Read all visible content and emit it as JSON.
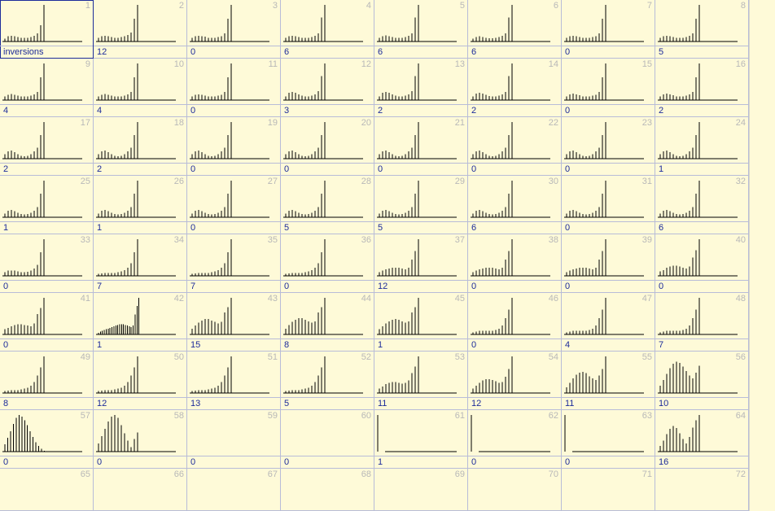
{
  "first_cell_label": "inversions",
  "cells": [
    {
      "n": "1",
      "value": "",
      "bars": [
        0.08,
        0.14,
        0.16,
        0.14,
        0.12,
        0.1,
        0.1,
        0.1,
        0.12,
        0.16,
        0.22,
        0.45,
        1.0
      ]
    },
    {
      "n": "2",
      "value": "12",
      "bars": [
        0.1,
        0.14,
        0.16,
        0.14,
        0.12,
        0.1,
        0.1,
        0.12,
        0.14,
        0.18,
        0.24,
        0.62,
        1.0
      ]
    },
    {
      "n": "3",
      "value": "0",
      "bars": [
        0.1,
        0.14,
        0.16,
        0.15,
        0.13,
        0.1,
        0.1,
        0.1,
        0.12,
        0.15,
        0.22,
        0.62,
        1.0
      ]
    },
    {
      "n": "4",
      "value": "6",
      "bars": [
        0.1,
        0.15,
        0.16,
        0.14,
        0.12,
        0.1,
        0.1,
        0.1,
        0.12,
        0.16,
        0.22,
        0.66,
        1.0
      ]
    },
    {
      "n": "5",
      "value": "6",
      "bars": [
        0.1,
        0.15,
        0.17,
        0.15,
        0.12,
        0.1,
        0.1,
        0.1,
        0.12,
        0.16,
        0.22,
        0.66,
        1.0
      ]
    },
    {
      "n": "6",
      "value": "6",
      "bars": [
        0.08,
        0.12,
        0.14,
        0.12,
        0.1,
        0.09,
        0.09,
        0.1,
        0.12,
        0.16,
        0.22,
        0.66,
        1.0
      ]
    },
    {
      "n": "7",
      "value": "0",
      "bars": [
        0.1,
        0.14,
        0.16,
        0.14,
        0.12,
        0.1,
        0.1,
        0.1,
        0.12,
        0.15,
        0.22,
        0.62,
        1.0
      ]
    },
    {
      "n": "8",
      "value": "5",
      "bars": [
        0.1,
        0.15,
        0.16,
        0.14,
        0.12,
        0.1,
        0.1,
        0.1,
        0.12,
        0.16,
        0.22,
        0.62,
        1.0
      ]
    },
    {
      "n": "9",
      "value": "4",
      "bars": [
        0.1,
        0.15,
        0.17,
        0.14,
        0.12,
        0.1,
        0.1,
        0.1,
        0.12,
        0.16,
        0.22,
        0.62,
        1.0
      ]
    },
    {
      "n": "10",
      "value": "4",
      "bars": [
        0.1,
        0.15,
        0.17,
        0.14,
        0.12,
        0.1,
        0.1,
        0.1,
        0.12,
        0.16,
        0.22,
        0.62,
        1.0
      ]
    },
    {
      "n": "11",
      "value": "0",
      "bars": [
        0.1,
        0.14,
        0.16,
        0.14,
        0.12,
        0.1,
        0.1,
        0.1,
        0.12,
        0.15,
        0.22,
        0.62,
        1.0
      ]
    },
    {
      "n": "12",
      "value": "3",
      "bars": [
        0.1,
        0.2,
        0.22,
        0.2,
        0.16,
        0.12,
        0.1,
        0.1,
        0.12,
        0.16,
        0.24,
        0.66,
        1.0
      ]
    },
    {
      "n": "13",
      "value": "2",
      "bars": [
        0.1,
        0.2,
        0.22,
        0.2,
        0.16,
        0.12,
        0.1,
        0.1,
        0.12,
        0.16,
        0.24,
        0.66,
        1.0
      ]
    },
    {
      "n": "14",
      "value": "2",
      "bars": [
        0.1,
        0.18,
        0.2,
        0.18,
        0.14,
        0.11,
        0.1,
        0.1,
        0.12,
        0.16,
        0.22,
        0.66,
        1.0
      ]
    },
    {
      "n": "15",
      "value": "0",
      "bars": [
        0.1,
        0.16,
        0.18,
        0.16,
        0.13,
        0.1,
        0.1,
        0.1,
        0.12,
        0.15,
        0.22,
        0.62,
        1.0
      ]
    },
    {
      "n": "16",
      "value": "2",
      "bars": [
        0.1,
        0.16,
        0.18,
        0.16,
        0.13,
        0.1,
        0.1,
        0.1,
        0.12,
        0.16,
        0.22,
        0.62,
        1.0
      ]
    },
    {
      "n": "17",
      "value": "2",
      "bars": [
        0.12,
        0.2,
        0.22,
        0.18,
        0.12,
        0.08,
        0.07,
        0.08,
        0.12,
        0.2,
        0.3,
        0.64,
        1.0
      ]
    },
    {
      "n": "18",
      "value": "2",
      "bars": [
        0.12,
        0.2,
        0.22,
        0.18,
        0.12,
        0.08,
        0.07,
        0.08,
        0.12,
        0.2,
        0.3,
        0.64,
        1.0
      ]
    },
    {
      "n": "19",
      "value": "0",
      "bars": [
        0.12,
        0.2,
        0.22,
        0.18,
        0.12,
        0.08,
        0.07,
        0.08,
        0.12,
        0.2,
        0.3,
        0.64,
        1.0
      ]
    },
    {
      "n": "20",
      "value": "0",
      "bars": [
        0.12,
        0.2,
        0.22,
        0.18,
        0.12,
        0.08,
        0.07,
        0.08,
        0.12,
        0.2,
        0.3,
        0.64,
        1.0
      ]
    },
    {
      "n": "21",
      "value": "0",
      "bars": [
        0.12,
        0.2,
        0.22,
        0.18,
        0.12,
        0.08,
        0.07,
        0.08,
        0.12,
        0.2,
        0.3,
        0.64,
        1.0
      ]
    },
    {
      "n": "22",
      "value": "0",
      "bars": [
        0.12,
        0.2,
        0.22,
        0.18,
        0.12,
        0.08,
        0.07,
        0.08,
        0.12,
        0.2,
        0.3,
        0.64,
        1.0
      ]
    },
    {
      "n": "23",
      "value": "0",
      "bars": [
        0.12,
        0.2,
        0.22,
        0.18,
        0.12,
        0.08,
        0.07,
        0.08,
        0.12,
        0.2,
        0.3,
        0.64,
        1.0
      ]
    },
    {
      "n": "24",
      "value": "1",
      "bars": [
        0.12,
        0.2,
        0.22,
        0.18,
        0.12,
        0.08,
        0.07,
        0.08,
        0.12,
        0.2,
        0.3,
        0.64,
        1.0
      ]
    },
    {
      "n": "25",
      "value": "1",
      "bars": [
        0.1,
        0.18,
        0.2,
        0.17,
        0.12,
        0.09,
        0.08,
        0.09,
        0.12,
        0.18,
        0.28,
        0.64,
        1.0
      ]
    },
    {
      "n": "26",
      "value": "1",
      "bars": [
        0.1,
        0.18,
        0.2,
        0.17,
        0.12,
        0.09,
        0.08,
        0.09,
        0.12,
        0.18,
        0.28,
        0.64,
        1.0
      ]
    },
    {
      "n": "27",
      "value": "0",
      "bars": [
        0.1,
        0.18,
        0.2,
        0.17,
        0.12,
        0.09,
        0.08,
        0.09,
        0.12,
        0.18,
        0.28,
        0.64,
        1.0
      ]
    },
    {
      "n": "28",
      "value": "5",
      "bars": [
        0.1,
        0.18,
        0.2,
        0.17,
        0.12,
        0.09,
        0.08,
        0.09,
        0.12,
        0.18,
        0.28,
        0.64,
        1.0
      ]
    },
    {
      "n": "29",
      "value": "5",
      "bars": [
        0.1,
        0.18,
        0.2,
        0.17,
        0.12,
        0.09,
        0.08,
        0.09,
        0.12,
        0.18,
        0.28,
        0.64,
        1.0
      ]
    },
    {
      "n": "30",
      "value": "6",
      "bars": [
        0.1,
        0.18,
        0.2,
        0.17,
        0.12,
        0.09,
        0.08,
        0.09,
        0.12,
        0.18,
        0.28,
        0.64,
        1.0
      ]
    },
    {
      "n": "31",
      "value": "0",
      "bars": [
        0.1,
        0.18,
        0.2,
        0.17,
        0.12,
        0.09,
        0.08,
        0.09,
        0.12,
        0.18,
        0.28,
        0.64,
        1.0
      ]
    },
    {
      "n": "32",
      "value": "6",
      "bars": [
        0.1,
        0.18,
        0.2,
        0.17,
        0.12,
        0.09,
        0.08,
        0.09,
        0.12,
        0.18,
        0.28,
        0.64,
        1.0
      ]
    },
    {
      "n": "33",
      "value": "0",
      "bars": [
        0.1,
        0.14,
        0.15,
        0.14,
        0.12,
        0.1,
        0.1,
        0.11,
        0.14,
        0.2,
        0.3,
        0.64,
        1.0
      ]
    },
    {
      "n": "34",
      "value": "7",
      "bars": [
        0.06,
        0.07,
        0.08,
        0.08,
        0.08,
        0.08,
        0.1,
        0.12,
        0.16,
        0.22,
        0.34,
        0.64,
        1.0
      ]
    },
    {
      "n": "35",
      "value": "7",
      "bars": [
        0.06,
        0.07,
        0.08,
        0.08,
        0.08,
        0.08,
        0.1,
        0.12,
        0.16,
        0.22,
        0.34,
        0.64,
        1.0
      ]
    },
    {
      "n": "36",
      "value": "0",
      "bars": [
        0.06,
        0.07,
        0.08,
        0.08,
        0.08,
        0.08,
        0.1,
        0.12,
        0.16,
        0.22,
        0.34,
        0.64,
        1.0
      ]
    },
    {
      "n": "37",
      "value": "12",
      "bars": [
        0.1,
        0.14,
        0.18,
        0.2,
        0.22,
        0.22,
        0.22,
        0.2,
        0.18,
        0.22,
        0.44,
        0.68,
        1.0
      ]
    },
    {
      "n": "38",
      "value": "0",
      "bars": [
        0.1,
        0.14,
        0.18,
        0.2,
        0.22,
        0.22,
        0.22,
        0.2,
        0.18,
        0.22,
        0.44,
        0.68,
        1.0
      ]
    },
    {
      "n": "39",
      "value": "0",
      "bars": [
        0.1,
        0.14,
        0.18,
        0.2,
        0.22,
        0.22,
        0.22,
        0.2,
        0.18,
        0.22,
        0.44,
        0.68,
        1.0
      ]
    },
    {
      "n": "40",
      "value": "0",
      "bars": [
        0.12,
        0.16,
        0.22,
        0.26,
        0.28,
        0.28,
        0.26,
        0.22,
        0.2,
        0.26,
        0.5,
        0.7,
        1.0
      ]
    },
    {
      "n": "41",
      "value": "0",
      "bars": [
        0.14,
        0.18,
        0.22,
        0.26,
        0.28,
        0.28,
        0.26,
        0.24,
        0.22,
        0.3,
        0.56,
        0.72,
        1.0
      ]
    },
    {
      "n": "42",
      "value": "1",
      "bars": [
        0.04,
        0.08,
        0.1,
        0.12,
        0.14,
        0.16,
        0.18,
        0.2,
        0.22,
        0.24,
        0.26,
        0.28,
        0.28,
        0.28,
        0.26,
        0.24,
        0.22,
        0.2,
        0.24,
        0.54,
        0.78,
        1.0
      ]
    },
    {
      "n": "43",
      "value": "15",
      "bars": [
        0.16,
        0.24,
        0.32,
        0.38,
        0.42,
        0.42,
        0.38,
        0.34,
        0.3,
        0.34,
        0.6,
        0.74,
        1.0
      ]
    },
    {
      "n": "44",
      "value": "8",
      "bars": [
        0.16,
        0.26,
        0.34,
        0.4,
        0.44,
        0.44,
        0.4,
        0.36,
        0.32,
        0.36,
        0.6,
        0.74,
        1.0
      ]
    },
    {
      "n": "45",
      "value": "1",
      "bars": [
        0.14,
        0.22,
        0.3,
        0.36,
        0.4,
        0.42,
        0.4,
        0.36,
        0.32,
        0.36,
        0.6,
        0.74,
        1.0
      ]
    },
    {
      "n": "46",
      "value": "0",
      "bars": [
        0.06,
        0.08,
        0.1,
        0.1,
        0.1,
        0.1,
        0.1,
        0.12,
        0.16,
        0.24,
        0.44,
        0.68,
        1.0
      ]
    },
    {
      "n": "47",
      "value": "4",
      "bars": [
        0.06,
        0.08,
        0.1,
        0.1,
        0.1,
        0.1,
        0.1,
        0.12,
        0.16,
        0.24,
        0.44,
        0.68,
        1.0
      ]
    },
    {
      "n": "48",
      "value": "7",
      "bars": [
        0.06,
        0.08,
        0.1,
        0.1,
        0.1,
        0.1,
        0.1,
        0.12,
        0.16,
        0.24,
        0.44,
        0.68,
        1.0
      ]
    },
    {
      "n": "49",
      "value": "8",
      "bars": [
        0.06,
        0.07,
        0.08,
        0.08,
        0.08,
        0.1,
        0.12,
        0.14,
        0.2,
        0.3,
        0.48,
        0.7,
        1.0
      ]
    },
    {
      "n": "50",
      "value": "12",
      "bars": [
        0.06,
        0.07,
        0.08,
        0.08,
        0.08,
        0.1,
        0.12,
        0.14,
        0.2,
        0.3,
        0.48,
        0.7,
        1.0
      ]
    },
    {
      "n": "51",
      "value": "13",
      "bars": [
        0.06,
        0.07,
        0.08,
        0.08,
        0.08,
        0.1,
        0.12,
        0.14,
        0.2,
        0.3,
        0.48,
        0.7,
        1.0
      ]
    },
    {
      "n": "52",
      "value": "5",
      "bars": [
        0.06,
        0.07,
        0.08,
        0.08,
        0.08,
        0.1,
        0.12,
        0.14,
        0.2,
        0.3,
        0.48,
        0.7,
        1.0
      ]
    },
    {
      "n": "53",
      "value": "11",
      "bars": [
        0.12,
        0.18,
        0.24,
        0.28,
        0.3,
        0.3,
        0.28,
        0.26,
        0.28,
        0.34,
        0.54,
        0.72,
        1.0
      ]
    },
    {
      "n": "54",
      "value": "12",
      "bars": [
        0.12,
        0.2,
        0.28,
        0.34,
        0.38,
        0.38,
        0.36,
        0.32,
        0.28,
        0.3,
        0.44,
        0.66,
        1.0
      ]
    },
    {
      "n": "55",
      "value": "11",
      "bars": [
        0.16,
        0.28,
        0.4,
        0.5,
        0.56,
        0.58,
        0.54,
        0.46,
        0.4,
        0.36,
        0.48,
        0.66,
        1.0
      ]
    },
    {
      "n": "56",
      "value": "10",
      "bars": [
        0.2,
        0.36,
        0.52,
        0.68,
        0.8,
        0.86,
        0.82,
        0.72,
        0.6,
        0.48,
        0.4,
        0.56,
        0.74
      ]
    },
    {
      "n": "57",
      "value": "0",
      "bars": [
        0.2,
        0.38,
        0.56,
        0.76,
        0.92,
        1.0,
        0.96,
        0.86,
        0.72,
        0.56,
        0.4,
        0.26,
        0.16,
        0.08,
        0.02
      ]
    },
    {
      "n": "58",
      "value": "0",
      "bars": [
        0.22,
        0.42,
        0.62,
        0.82,
        0.96,
        1.0,
        0.92,
        0.72,
        0.5,
        0.3,
        0.12,
        0.34,
        0.52
      ]
    },
    {
      "n": "59",
      "value": "0",
      "bars": []
    },
    {
      "n": "60",
      "value": "0",
      "bars": []
    },
    {
      "n": "61",
      "value": "1",
      "bars": [
        1.0
      ]
    },
    {
      "n": "62",
      "value": "0",
      "bars": [
        1.0
      ]
    },
    {
      "n": "63",
      "value": "0",
      "bars": [
        1.0
      ]
    },
    {
      "n": "64",
      "value": "16",
      "bars": [
        0.16,
        0.3,
        0.48,
        0.62,
        0.7,
        0.64,
        0.5,
        0.34,
        0.22,
        0.4,
        0.66,
        0.86,
        1.0
      ]
    },
    {
      "n": "65",
      "value": "",
      "bars": null
    },
    {
      "n": "66",
      "value": "",
      "bars": null
    },
    {
      "n": "67",
      "value": "",
      "bars": null
    },
    {
      "n": "68",
      "value": "",
      "bars": null
    },
    {
      "n": "69",
      "value": "",
      "bars": null
    },
    {
      "n": "70",
      "value": "",
      "bars": null
    },
    {
      "n": "71",
      "value": "",
      "bars": null
    },
    {
      "n": "72",
      "value": "",
      "bars": null
    }
  ]
}
